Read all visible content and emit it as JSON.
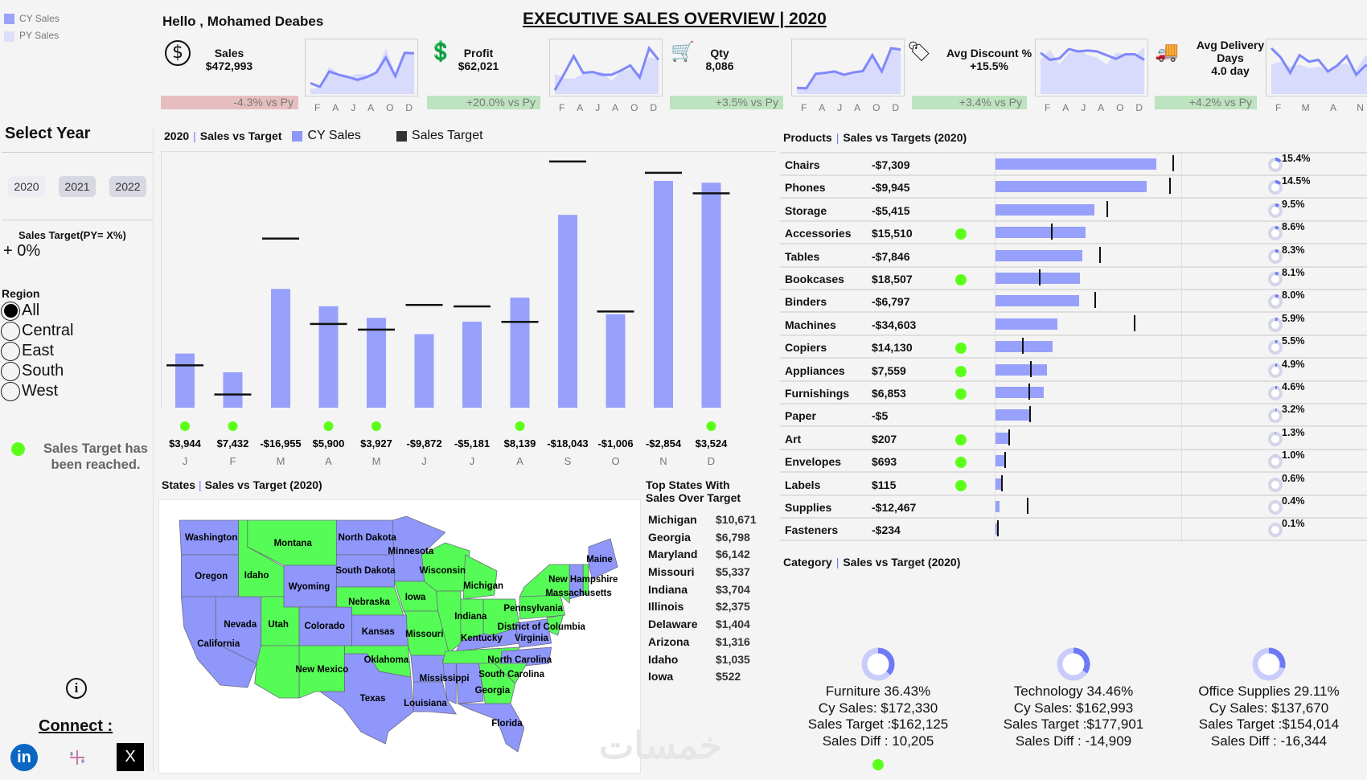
{
  "legend": {
    "cy": "CY Sales",
    "py": "PY Sales",
    "cy_color": "#9aa2fb",
    "py_color": "#dcdffa"
  },
  "header": {
    "greeting": "Hello , Mohamed Deabes",
    "title": "EXECUTIVE SALES OVERVIEW | 2020"
  },
  "kpis": [
    {
      "icon": "dollar-circle-icon",
      "label": "Sales",
      "value": "$472,993",
      "vs": "-4.3% vs Py",
      "status": "down",
      "months": [
        "F",
        "A",
        "J",
        "A",
        "O",
        "D"
      ],
      "cy_trend": [
        20,
        12,
        45,
        38,
        33,
        27,
        33,
        43,
        75,
        35,
        85,
        84
      ],
      "py_trend": [
        8,
        10,
        55,
        40,
        33,
        40,
        38,
        40,
        95,
        40,
        85,
        85
      ]
    },
    {
      "icon": "money-hand-icon",
      "label": "Profit",
      "value": "$62,021",
      "vs": "+20.0% vs Py",
      "status": "up",
      "months": [
        "F",
        "A",
        "J",
        "A",
        "O",
        "D"
      ],
      "cy_trend": [
        5,
        40,
        78,
        42,
        44,
        38,
        38,
        47,
        58,
        32,
        95,
        70
      ],
      "py_trend": [
        40,
        30,
        30,
        40,
        42,
        45,
        25,
        45,
        50,
        40,
        75,
        72
      ]
    },
    {
      "icon": "cart-add-icon",
      "label": "Qty",
      "value": "8,086",
      "vs": "+3.5% vs Py",
      "status": "up",
      "months": [
        "F",
        "A",
        "J",
        "A",
        "O",
        "D"
      ],
      "cy_trend": [
        10,
        9,
        40,
        42,
        45,
        38,
        43,
        46,
        80,
        45,
        95,
        92
      ],
      "py_trend": [
        8,
        12,
        42,
        44,
        44,
        40,
        44,
        48,
        80,
        48,
        95,
        90
      ]
    },
    {
      "icon": "price-tag-icon",
      "label": "Avg Discount %",
      "value": "+15.5%",
      "vs": "+3.4% vs Py",
      "status": "up",
      "months": [
        "F",
        "A",
        "J",
        "A",
        "O",
        "D"
      ],
      "cy_trend": [
        85,
        70,
        73,
        93,
        88,
        90,
        88,
        80,
        72,
        82,
        82,
        70
      ],
      "py_trend": [
        70,
        92,
        60,
        85,
        92,
        80,
        75,
        60,
        85,
        82,
        78,
        98
      ]
    },
    {
      "icon": "delivery-truck-icon",
      "label": "Avg Delivery Days",
      "value": "4.0 day",
      "vs": "+4.2% vs Py",
      "status": "up",
      "months": [
        "F",
        "M",
        "A",
        "N"
      ],
      "cy_trend": [
        95,
        75,
        42,
        80,
        66,
        70,
        45,
        58,
        78,
        38,
        58,
        56
      ],
      "py_trend": [
        60,
        66,
        55,
        60,
        52,
        55,
        48,
        60,
        62,
        48,
        80,
        60
      ]
    }
  ],
  "colors": {
    "down": "#e7bec0",
    "up": "#bde3bf",
    "bar": "#97a0fa",
    "target": "#111111",
    "reached": "#5cff1a",
    "map_over": "#55fc55",
    "map_under": "#8f97fb"
  },
  "sidebar": {
    "select_year": "Select Year",
    "years": [
      "2020",
      "2021",
      "2022"
    ],
    "selected_year": "2020",
    "target_label": "Sales Target(PY= X%)",
    "target_value": "+ 0%",
    "region_label": "Region",
    "regions": [
      "All",
      "Central",
      "East",
      "South",
      "West"
    ],
    "selected_region": "All",
    "reached_note": "Sales Target has been reached.",
    "connect": "Connect :",
    "social": [
      "linkedin-icon",
      "tableau-icon",
      "x-icon"
    ],
    "social_labels": {
      "linkedin": "in",
      "x": "X"
    }
  },
  "monthly": {
    "year": "2020",
    "title": "Sales vs Target",
    "legend_cy": "CY Sales",
    "legend_target": "Sales Target",
    "chart_data": {
      "type": "bar",
      "categories": [
        "J",
        "F",
        "M",
        "A",
        "M",
        "J",
        "J",
        "A",
        "S",
        "O",
        "N",
        "D"
      ],
      "series": [
        {
          "name": "CY Sales",
          "values": [
            18200,
            11900,
            39900,
            34100,
            30200,
            24700,
            28900,
            37000,
            64800,
            31400,
            76200,
            75600
          ]
        },
        {
          "name": "Sales Target",
          "values": [
            14300,
            4500,
            56900,
            28200,
            26300,
            34600,
            34100,
            28900,
            82800,
            32400,
            79000,
            72100
          ]
        }
      ],
      "diff_labels": [
        "$3,944",
        "$7,432",
        "-$16,955",
        "$5,900",
        "$3,927",
        "-$9,872",
        "-$5,181",
        "$8,139",
        "-$18,043",
        "-$1,006",
        "-$2,854",
        "$3,524"
      ],
      "reached": [
        true,
        true,
        false,
        true,
        true,
        false,
        false,
        true,
        false,
        false,
        false,
        true
      ]
    }
  },
  "products": {
    "title_a": "Products",
    "title_b": "Sales vs Targets (2020)",
    "rows": [
      {
        "name": "Chairs",
        "diff": "-$7,309",
        "sales": 72841,
        "target": 80150,
        "reached": false,
        "share": "15.4%"
      },
      {
        "name": "Phones",
        "diff": "-$9,945",
        "sales": 68584,
        "target": 78529,
        "reached": false,
        "share": "14.5%"
      },
      {
        "name": "Storage",
        "diff": "-$5,415",
        "sales": 44934,
        "target": 50349,
        "reached": false,
        "share": "9.5%"
      },
      {
        "name": "Accessories",
        "diff": "$15,510",
        "sales": 40677,
        "target": 25167,
        "reached": true,
        "share": "8.6%"
      },
      {
        "name": "Tables",
        "diff": "-$7,846",
        "sales": 39258,
        "target": 47104,
        "reached": false,
        "share": "8.3%"
      },
      {
        "name": "Bookcases",
        "diff": "$18,507",
        "sales": 38312,
        "target": 19805,
        "reached": true,
        "share": "8.1%"
      },
      {
        "name": "Binders",
        "diff": "-$6,797",
        "sales": 37839,
        "target": 44636,
        "reached": false,
        "share": "8.0%"
      },
      {
        "name": "Machines",
        "diff": "-$34,603",
        "sales": 27907,
        "target": 62510,
        "reached": false,
        "share": "5.9%"
      },
      {
        "name": "Copiers",
        "diff": "$14,130",
        "sales": 26015,
        "target": 11885,
        "reached": true,
        "share": "5.5%"
      },
      {
        "name": "Appliances",
        "diff": "$7,559",
        "sales": 23177,
        "target": 15618,
        "reached": true,
        "share": "4.9%"
      },
      {
        "name": "Furnishings",
        "diff": "$6,853",
        "sales": 21758,
        "target": 14905,
        "reached": true,
        "share": "4.6%"
      },
      {
        "name": "Paper",
        "diff": "-$5",
        "sales": 15136,
        "target": 15141,
        "reached": false,
        "share": "3.2%"
      },
      {
        "name": "Art",
        "diff": "$207",
        "sales": 6149,
        "target": 5942,
        "reached": true,
        "share": "1.3%"
      },
      {
        "name": "Envelopes",
        "diff": "$693",
        "sales": 4730,
        "target": 4037,
        "reached": true,
        "share": "1.0%"
      },
      {
        "name": "Labels",
        "diff": "$115",
        "sales": 2838,
        "target": 2723,
        "reached": true,
        "share": "0.6%"
      },
      {
        "name": "Supplies",
        "diff": "-$12,467",
        "sales": 1892,
        "target": 14359,
        "reached": false,
        "share": "0.4%"
      },
      {
        "name": "Fasteners",
        "diff": "-$234",
        "sales": 473,
        "target": 707,
        "reached": false,
        "share": "0.1%"
      }
    ]
  },
  "states": {
    "title_a": "States",
    "title_b": "Sales vs Target (2020)",
    "top_title": "Top States With Sales Over Target",
    "top": [
      {
        "name": "Michigan",
        "value": "$10,671"
      },
      {
        "name": "Georgia",
        "value": "$6,798"
      },
      {
        "name": "Maryland",
        "value": "$6,142"
      },
      {
        "name": "Missouri",
        "value": "$5,337"
      },
      {
        "name": "Indiana",
        "value": "$3,704"
      },
      {
        "name": "Illinois",
        "value": "$2,375"
      },
      {
        "name": "Delaware",
        "value": "$1,404"
      },
      {
        "name": "Arizona",
        "value": "$1,316"
      },
      {
        "name": "Idaho",
        "value": "$1,035"
      },
      {
        "name": "Iowa",
        "value": "$522"
      }
    ],
    "over_target": [
      "Idaho",
      "Montana",
      "Utah",
      "Arizona",
      "New Mexico",
      "Nebraska",
      "Oklahoma",
      "Iowa",
      "Missouri",
      "Wisconsin",
      "Illinois",
      "Michigan",
      "Indiana",
      "Ohio",
      "Tennessee",
      "Georgia",
      "South Carolina",
      "Pennsylvania",
      "New York",
      "New Hampshire",
      "Maryland"
    ],
    "labels": [
      "Washington",
      "Montana",
      "North Dakota",
      "Minnesota",
      "Oregon",
      "Idaho",
      "Wyoming",
      "South Dakota",
      "Wisconsin",
      "Michigan",
      "Nebraska",
      "Iowa",
      "Maine",
      "New Hampshire",
      "Massachusetts",
      "Pennsylvania",
      "Indiana",
      "Nevada",
      "Utah",
      "Colorado",
      "Kansas",
      "Missouri",
      "California",
      "District of Columbia",
      "Kentucky",
      "Virginia",
      "Oklahoma",
      "North Carolina",
      "New Mexico",
      "Mississippi",
      "South Carolina",
      "Georgia",
      "Texas",
      "Louisiana",
      "Florida"
    ]
  },
  "category": {
    "title_a": "Category",
    "title_b": "Sales vs Target (2020)",
    "items": [
      {
        "name": "Furniture 36.43%",
        "share": 36.43,
        "cy": "Cy Sales: $172,330",
        "target": "Sales Target :$162,125",
        "diff": "Sales Diff : 10,205",
        "reached": true
      },
      {
        "name": "Technology 34.46%",
        "share": 34.46,
        "cy": "Cy Sales: $162,993",
        "target": "Sales Target :$177,901",
        "diff": "Sales Diff : -14,909",
        "reached": false
      },
      {
        "name": "Office Supplies 29.11%",
        "share": 29.11,
        "cy": "Cy Sales: $137,670",
        "target": "Sales Target :$154,014",
        "diff": "Sales Diff : -16,344",
        "reached": false
      }
    ]
  },
  "watermark": "خمسات"
}
